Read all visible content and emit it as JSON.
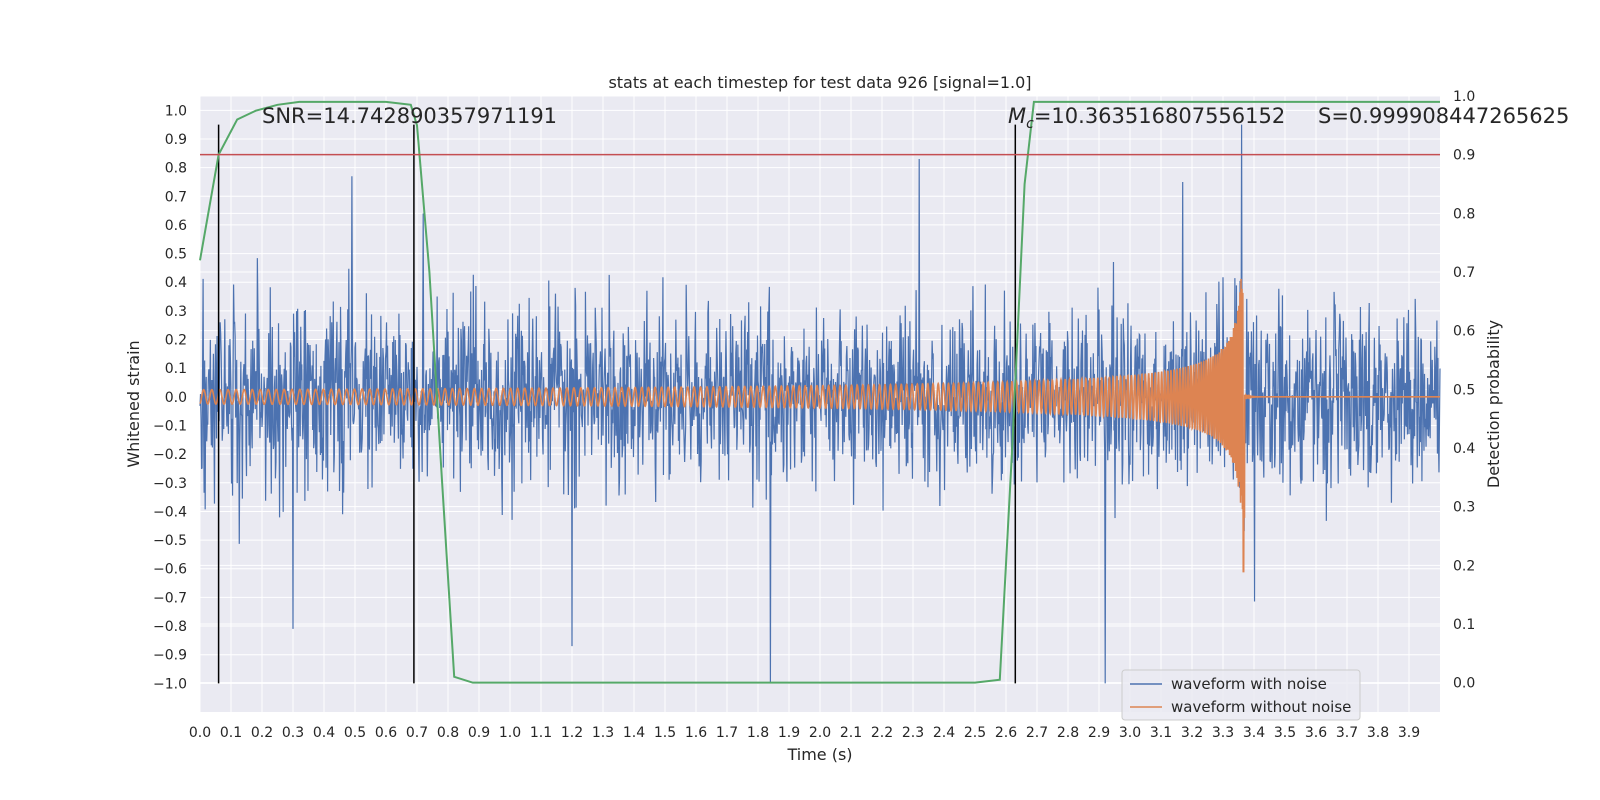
{
  "chart_data": {
    "type": "line",
    "title": "stats at each timestep for test data 926 [signal=1.0]",
    "xlabel": "Time (s)",
    "ylabel": "Whitened strain",
    "y2label": "Detection probability",
    "xlim": [
      0.0,
      4.0
    ],
    "ylim": [
      -1.1,
      1.05
    ],
    "y2lim": [
      -0.05,
      1.0
    ],
    "xticks": [
      "0.0",
      "0.1",
      "0.2",
      "0.3",
      "0.4",
      "0.5",
      "0.6",
      "0.7",
      "0.8",
      "0.9",
      "1.0",
      "1.1",
      "1.2",
      "1.3",
      "1.4",
      "1.5",
      "1.6",
      "1.7",
      "1.8",
      "1.9",
      "2.0",
      "2.1",
      "2.2",
      "2.3",
      "2.4",
      "2.5",
      "2.6",
      "2.7",
      "2.8",
      "2.9",
      "3.0",
      "3.1",
      "3.2",
      "3.3",
      "3.4",
      "3.5",
      "3.6",
      "3.7",
      "3.8",
      "3.9"
    ],
    "yticks": [
      "1.0",
      "0.9",
      "0.8",
      "0.7",
      "0.6",
      "0.5",
      "0.4",
      "0.3",
      "0.2",
      "0.1",
      "0.0",
      "-0.1",
      "-0.2",
      "-0.3",
      "-0.4",
      "-0.5",
      "-0.6",
      "-0.7",
      "-0.8",
      "-0.9",
      "-1.0"
    ],
    "y2ticks": [
      "1.0",
      "0.9",
      "0.8",
      "0.7",
      "0.6",
      "0.5",
      "0.4",
      "0.3",
      "0.2",
      "0.1",
      "0.0"
    ],
    "grid": true,
    "legend_placement": "lower-right",
    "legend": [
      "waveform with noise",
      "waveform without noise"
    ],
    "annotations": {
      "snr": "SNR=14.742890357971191",
      "mc_symbol": "M",
      "mc_sub": "c",
      "mc_value": "=10.363516807556152",
      "s": "S=0.999908447265625"
    },
    "threshold": 0.9,
    "threshold_color": "#c44e52",
    "vlines": [
      0.06,
      0.69,
      2.63
    ],
    "noise_series": {
      "name": "waveform with noise",
      "color": "#4c72b0",
      "std": 0.24,
      "peaks": [
        {
          "x": 0.49,
          "y": 0.77
        },
        {
          "x": 1.84,
          "y": -1.0
        },
        {
          "x": 2.32,
          "y": 0.83
        },
        {
          "x": 3.36,
          "y": 0.95
        },
        {
          "x": 2.92,
          "y": -1.0
        },
        {
          "x": 0.72,
          "y": 0.64
        },
        {
          "x": 3.17,
          "y": 0.75
        },
        {
          "x": 1.2,
          "y": -0.87
        },
        {
          "x": 0.3,
          "y": -0.81
        }
      ]
    },
    "signal_series": {
      "name": "waveform without noise",
      "color": "#dd8452",
      "t_merge": 3.37,
      "early_amplitude": 0.025,
      "peak_amplitude": 0.43,
      "min_value": -0.61
    },
    "prob_series": {
      "name": "detection probability",
      "color": "#55a868",
      "x": [
        0.0,
        0.06,
        0.12,
        0.18,
        0.25,
        0.32,
        0.4,
        0.5,
        0.6,
        0.68,
        0.7,
        0.74,
        0.78,
        0.82,
        0.88,
        1.0,
        1.5,
        2.0,
        2.5,
        2.58,
        2.62,
        2.66,
        2.69,
        3.0,
        3.5,
        4.0
      ],
      "y": [
        0.72,
        0.9,
        0.96,
        0.975,
        0.985,
        0.99,
        0.99,
        0.99,
        0.99,
        0.985,
        0.95,
        0.7,
        0.35,
        0.01,
        0.0,
        0.0,
        0.0,
        0.0,
        0.0,
        0.005,
        0.4,
        0.85,
        0.99,
        0.99,
        0.99,
        0.99
      ]
    }
  }
}
